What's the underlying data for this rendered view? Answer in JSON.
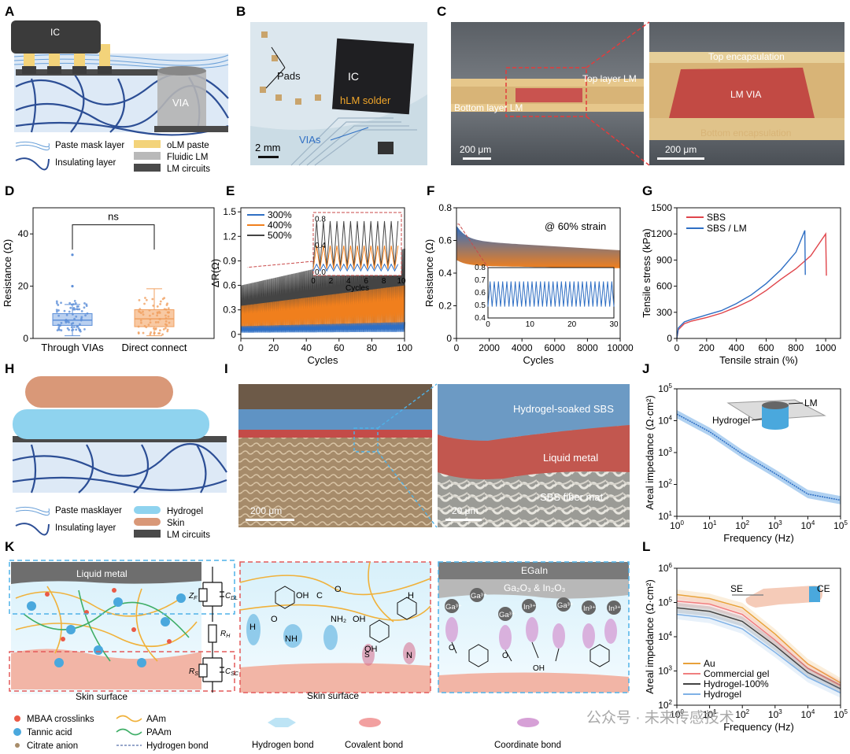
{
  "panels": {
    "A": {
      "letter": "A",
      "ic_label": "IC",
      "via_label": "VIA",
      "legend": [
        "Paste mask layer",
        "Insulating layer",
        "oLM paste",
        "Fluidic LM",
        "LM circuits"
      ]
    },
    "B": {
      "letter": "B",
      "labels": {
        "pads": "Pads",
        "ic": "IC",
        "solder": "hLM solder",
        "vias": "VIAs",
        "scale": "2 mm"
      }
    },
    "C": {
      "letter": "C",
      "left": {
        "top_layer": "Top layer LM",
        "bottom_layer": "Bottom layer LM",
        "scale": "200 μm"
      },
      "right": {
        "top_enc": "Top encapsulation",
        "via": "LM VIA",
        "bottom_enc": "Bottom encapsulation",
        "scale": "200 μm"
      }
    },
    "D": {
      "letter": "D"
    },
    "E": {
      "letter": "E"
    },
    "F": {
      "letter": "F"
    },
    "G": {
      "letter": "G"
    },
    "H": {
      "letter": "H",
      "legend": [
        "Paste masklayer",
        "Insulating layer",
        "Hydrogel",
        "Skin",
        "LM circuits"
      ]
    },
    "I": {
      "letter": "I",
      "left": {
        "scale": "200 μm"
      },
      "right": {
        "sbs": "Hydrogel-soaked SBS",
        "lm": "Liquid metal",
        "mat": "SBS fiber mat",
        "scale": "20 μm"
      }
    },
    "J": {
      "letter": "J",
      "inset": {
        "lm": "LM",
        "hydrogel": "Hydrogel"
      }
    },
    "K": {
      "letter": "K",
      "left": {
        "top": "Liquid metal",
        "bottom": "Skin surface"
      },
      "circuit": {
        "zf": "Z",
        "zf_sub": "F",
        "cdl": "C",
        "cdl_sub": "DL",
        "rh": "R",
        "rh_sub": "H",
        "rs": "R",
        "rs_sub": "S",
        "csc": "C",
        "csc_sub": "SC"
      },
      "middle": {
        "bottom": "Skin surface",
        "oh": "OH",
        "o": "O",
        "h": "H",
        "nh": "NH",
        "nh2": "NH₂",
        "s": "S",
        "n": "N",
        "c": "C"
      },
      "right": {
        "egain": "EGaIn",
        "oxide": "Ga₂O₃ & In₂O₃",
        "ga": "Ga³⁺",
        "in": "In³⁺",
        "oh": "OH",
        "o": "O"
      },
      "legend": [
        "MBAA crosslinks",
        "Tannic acid",
        "Citrate anion",
        "AAm",
        "PAAm",
        "Hydrogen bond"
      ],
      "bond_legend": [
        "Hydrogen bond",
        "Covalent bond",
        "Coordinate bond"
      ]
    },
    "L": {
      "letter": "L",
      "inset": {
        "se": "SE",
        "ce": "CE"
      }
    }
  },
  "watermark": "公众号 · 未来传感技术",
  "colors": {
    "blue": "#2f6fc4",
    "orange": "#f07f1d",
    "gray_line": "#444444",
    "red": "#e0454b",
    "hydrogel": "#8fd3ef",
    "skin": "#d99878",
    "lm": "#555555",
    "paste": "#f3d37a"
  },
  "chart_data": [
    {
      "id": "D",
      "type": "box",
      "title": "",
      "xlabel": "",
      "ylabel": "Resistance (Ω)",
      "ylim": [
        0,
        50
      ],
      "yticks": [
        0,
        20,
        40
      ],
      "categories": [
        "Through VIAs",
        "Direct connect"
      ],
      "boxes": [
        {
          "name": "Through VIAs",
          "whisker_low": 1,
          "q1": 5,
          "median": 7,
          "q3": 9.5,
          "whisker_high": 13,
          "outliers": [
            20,
            32
          ]
        },
        {
          "name": "Direct connect",
          "whisker_low": 1,
          "q1": 4.5,
          "median": 7.5,
          "q3": 11,
          "whisker_high": 19,
          "outliers": []
        }
      ],
      "annotation": "ns"
    },
    {
      "id": "E",
      "type": "line",
      "title": "",
      "xlabel": "Cycles",
      "ylabel": "ΔR(Ω)",
      "xlim": [
        0,
        100
      ],
      "ylim": [
        -0.05,
        1.55
      ],
      "xticks": [
        0,
        20,
        40,
        60,
        80,
        100
      ],
      "yticks": [
        0.0,
        0.3,
        0.6,
        0.9,
        1.2,
        1.5
      ],
      "series": [
        {
          "name": "300%",
          "low_start": 0.02,
          "low_end": 0.03,
          "peak_start": 0.1,
          "peak_end": 0.15
        },
        {
          "name": "400%",
          "low_start": 0.05,
          "low_end": 0.1,
          "peak_start": 0.35,
          "peak_end": 0.6
        },
        {
          "name": "500%",
          "low_start": 0.07,
          "low_end": 0.15,
          "peak_start": 0.6,
          "peak_end": 1.05
        }
      ],
      "inset": {
        "xlabel": "Cycles",
        "xlim": [
          0,
          10
        ],
        "ylim": [
          -0.05,
          0.9
        ],
        "xticks": [
          0,
          2,
          4,
          6,
          8,
          10
        ],
        "yticks": [
          0.0,
          0.4,
          0.8
        ],
        "peaks": [
          0.12,
          0.4,
          0.77
        ],
        "lows": [
          0.02,
          0.05,
          0.08
        ]
      }
    },
    {
      "id": "F",
      "type": "line",
      "title": "@ 60% strain",
      "xlabel": "Cycles",
      "ylabel": "Resistance (Ω)",
      "xlim": [
        0,
        10000
      ],
      "ylim": [
        0,
        0.8
      ],
      "xticks": [
        0,
        2000,
        4000,
        6000,
        8000,
        10000
      ],
      "yticks": [
        0.0,
        0.2,
        0.4,
        0.6,
        0.8
      ],
      "series": [
        {
          "name": "Resistance",
          "upper_start": 0.69,
          "upper_end": 0.54,
          "lower_start": 0.48,
          "lower_end": 0.43
        }
      ],
      "inset": {
        "xlim": [
          0,
          30
        ],
        "ylim": [
          0.4,
          0.8
        ],
        "xticks": [
          0,
          10,
          20,
          30
        ],
        "yticks": [
          0.4,
          0.5,
          0.6,
          0.7,
          0.8
        ],
        "high": 0.69,
        "low": 0.49,
        "cycles": 30
      }
    },
    {
      "id": "G",
      "type": "line",
      "title": "",
      "xlabel": "Tensile strain (%)",
      "ylabel": "Tensile stress (kPa)",
      "xlim": [
        0,
        1100
      ],
      "ylim": [
        0,
        1500
      ],
      "xticks": [
        0,
        200,
        400,
        600,
        800,
        1000
      ],
      "yticks": [
        0,
        300,
        600,
        900,
        1200,
        1500
      ],
      "series": [
        {
          "name": "SBS",
          "points": [
            [
              0,
              0
            ],
            [
              10,
              100
            ],
            [
              50,
              170
            ],
            [
              100,
              200
            ],
            [
              200,
              240
            ],
            [
              300,
              290
            ],
            [
              400,
              360
            ],
            [
              500,
              440
            ],
            [
              600,
              550
            ],
            [
              700,
              680
            ],
            [
              800,
              800
            ],
            [
              900,
              950
            ],
            [
              1000,
              1200
            ],
            [
              1005,
              720
            ]
          ]
        },
        {
          "name": "SBS / LM",
          "points": [
            [
              0,
              0
            ],
            [
              10,
              120
            ],
            [
              50,
              190
            ],
            [
              100,
              220
            ],
            [
              200,
              270
            ],
            [
              300,
              320
            ],
            [
              400,
              400
            ],
            [
              500,
              500
            ],
            [
              600,
              630
            ],
            [
              700,
              790
            ],
            [
              800,
              990
            ],
            [
              860,
              1240
            ],
            [
              863,
              730
            ]
          ]
        }
      ]
    },
    {
      "id": "J",
      "type": "line",
      "title": "",
      "xlabel": "Frequency (Hz)",
      "ylabel": "Areal impedance (Ω·cm²)",
      "xscale": "log",
      "yscale": "log",
      "xlim": [
        1,
        100000
      ],
      "ylim": [
        10,
        100000
      ],
      "xticks": [
        1,
        10,
        100,
        1000,
        10000,
        100000
      ],
      "yticks": [
        10,
        100,
        1000,
        10000,
        100000
      ],
      "series": [
        {
          "name": "Hydrogel",
          "points": [
            [
              1,
              16000
            ],
            [
              10,
              4500
            ],
            [
              100,
              900
            ],
            [
              1000,
              220
            ],
            [
              10000,
              50
            ],
            [
              100000,
              32
            ]
          ],
          "band_factor": 1.35
        }
      ]
    },
    {
      "id": "L",
      "type": "line",
      "title": "",
      "xlabel": "Frequency (Hz)",
      "ylabel": "Areal impedance (Ω·cm²)",
      "xscale": "log",
      "yscale": "log",
      "xlim": [
        1,
        100000
      ],
      "ylim": [
        100,
        1000000
      ],
      "xticks": [
        1,
        10,
        100,
        1000,
        10000,
        100000
      ],
      "yticks": [
        100,
        1000,
        10000,
        100000,
        1000000
      ],
      "series": [
        {
          "name": "Au",
          "points": [
            [
              1,
              170000
            ],
            [
              10,
              130000
            ],
            [
              100,
              70000
            ],
            [
              1000,
              12000
            ],
            [
              10000,
              1600
            ],
            [
              100000,
              450
            ]
          ]
        },
        {
          "name": "Commercial gel",
          "points": [
            [
              1,
              110000
            ],
            [
              10,
              90000
            ],
            [
              100,
              45000
            ],
            [
              1000,
              8000
            ],
            [
              10000,
              1200
            ],
            [
              100000,
              380
            ]
          ]
        },
        {
          "name": "Hydrogel-100%",
          "points": [
            [
              1,
              70000
            ],
            [
              10,
              55000
            ],
            [
              100,
              28000
            ],
            [
              1000,
              5500
            ],
            [
              10000,
              900
            ],
            [
              100000,
              300
            ]
          ]
        },
        {
          "name": "Hydrogel",
          "points": [
            [
              1,
              45000
            ],
            [
              10,
              35000
            ],
            [
              100,
              17000
            ],
            [
              1000,
              3500
            ],
            [
              10000,
              650
            ],
            [
              100000,
              230
            ]
          ]
        }
      ]
    }
  ]
}
